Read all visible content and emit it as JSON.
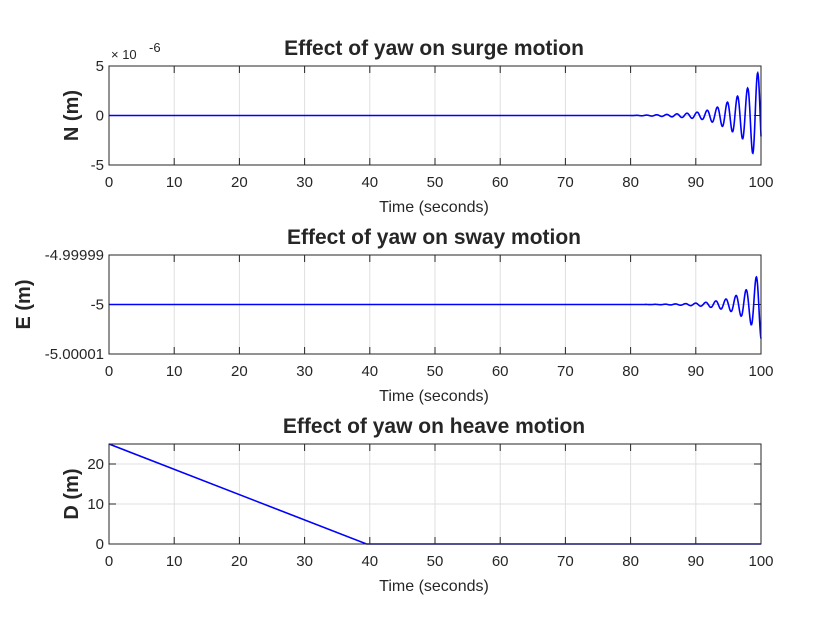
{
  "chart_data": [
    {
      "type": "line",
      "title": "Effect of yaw on surge motion",
      "xlabel": "Time (seconds)",
      "ylabel": "N (m)",
      "exponent_label": "× 10",
      "exponent_power": "-6",
      "xlim": [
        0,
        100
      ],
      "ylim": [
        -5,
        5
      ],
      "xticks": [
        "0",
        "10",
        "20",
        "30",
        "40",
        "50",
        "60",
        "70",
        "80",
        "90",
        "100"
      ],
      "yticks": [
        "5",
        "0",
        "-5"
      ],
      "grid": true,
      "series": [
        {
          "color": "#0000ff",
          "x": [
            0,
            80,
            83,
            86,
            89,
            91,
            93,
            95,
            96.5,
            98,
            99,
            100
          ],
          "y": [
            0,
            0,
            0.05,
            0.12,
            0.25,
            0.4,
            0.75,
            1.4,
            2.0,
            2.8,
            4.2,
            4.4
          ],
          "form": "envelope oscillation"
        }
      ]
    },
    {
      "type": "line",
      "title": "Effect of yaw on sway motion",
      "xlabel": "Time (seconds)",
      "ylabel": "E (m)",
      "xlim": [
        0,
        100
      ],
      "ylim": [
        -5.00001,
        -4.99999
      ],
      "xticks": [
        "0",
        "10",
        "20",
        "30",
        "40",
        "50",
        "60",
        "70",
        "80",
        "90",
        "100"
      ],
      "yticks": [
        "-4.99999",
        "-5",
        "-5.00001"
      ],
      "grid": true,
      "series": [
        {
          "color": "#0000ff",
          "x": [
            0,
            82,
            85,
            88,
            91,
            93,
            95,
            96.5,
            98,
            99,
            100
          ],
          "y_offset_e_minus_6": [
            0,
            0,
            0.05,
            0.15,
            0.35,
            0.7,
            1.2,
            2.0,
            3.2,
            5.0,
            7.0
          ],
          "center": -5,
          "form": "envelope oscillation"
        }
      ]
    },
    {
      "type": "line",
      "title": "Effect of yaw on heave motion",
      "xlabel": "Time (seconds)",
      "ylabel": "D (m)",
      "xlim": [
        0,
        100
      ],
      "ylim": [
        0,
        25
      ],
      "xticks": [
        "0",
        "10",
        "20",
        "30",
        "40",
        "50",
        "60",
        "70",
        "80",
        "90",
        "100"
      ],
      "yticks": [
        "20",
        "10",
        "0"
      ],
      "grid": true,
      "series": [
        {
          "color": "#0000ff",
          "x": [
            0,
            39.5,
            100
          ],
          "y": [
            25,
            0,
            0
          ]
        }
      ]
    }
  ]
}
